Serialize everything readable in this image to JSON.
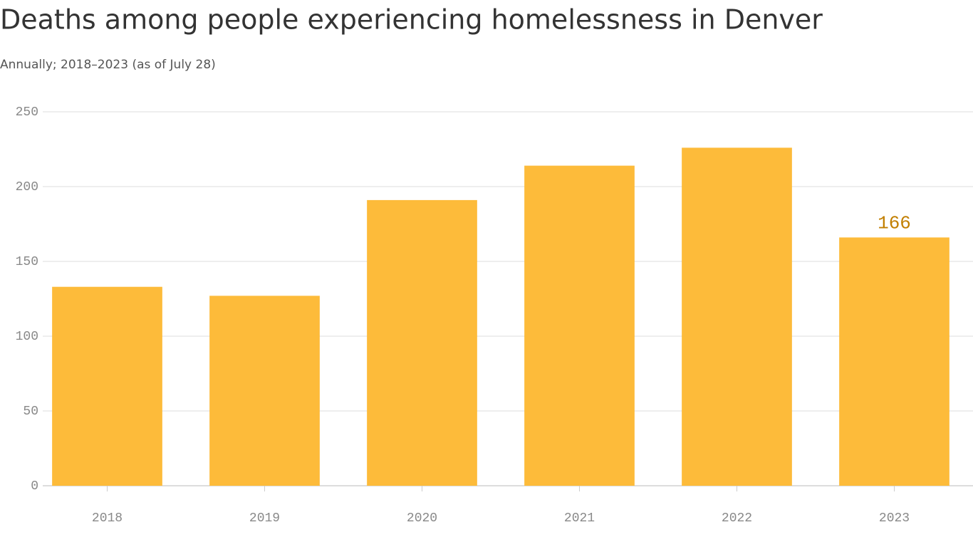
{
  "chart_data": {
    "type": "bar",
    "title": "Deaths among people experiencing homelessness in Denver",
    "subtitle": "Annually; 2018–2023 (as of July 28)",
    "categories": [
      "2018",
      "2019",
      "2020",
      "2021",
      "2022",
      "2023"
    ],
    "values": [
      133,
      127,
      191,
      214,
      226,
      166
    ],
    "value_labels": [
      null,
      null,
      null,
      null,
      null,
      "166"
    ],
    "color": "#fdbb3a",
    "ylim": [
      0,
      250
    ],
    "yticks": [
      0,
      50,
      100,
      150,
      200,
      250
    ],
    "grid": true
  }
}
